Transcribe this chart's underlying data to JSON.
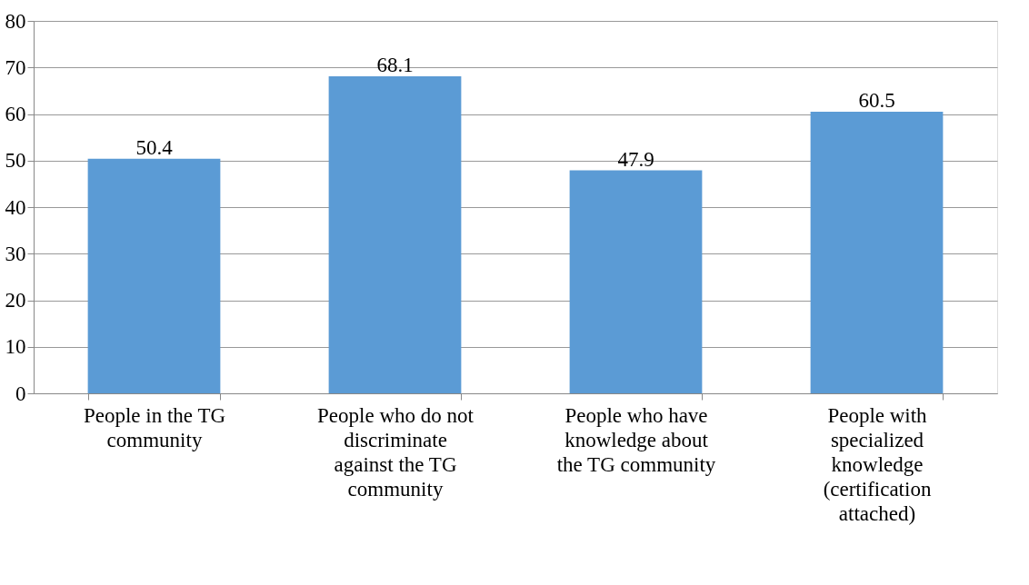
{
  "chart_data": {
    "type": "bar",
    "categories": [
      "People in the TG community",
      "People who do not discriminate against the TG community",
      "People who have knowledge about the TG community",
      "People with specialized knowledge (certification attached)"
    ],
    "values": [
      50.4,
      68.1,
      47.9,
      60.5
    ],
    "color": "#5b9bd5",
    "ylim": [
      0,
      80
    ],
    "yticks": [
      0,
      10,
      20,
      30,
      40,
      50,
      60,
      70,
      80
    ],
    "grid": "y",
    "data_labels": true
  }
}
